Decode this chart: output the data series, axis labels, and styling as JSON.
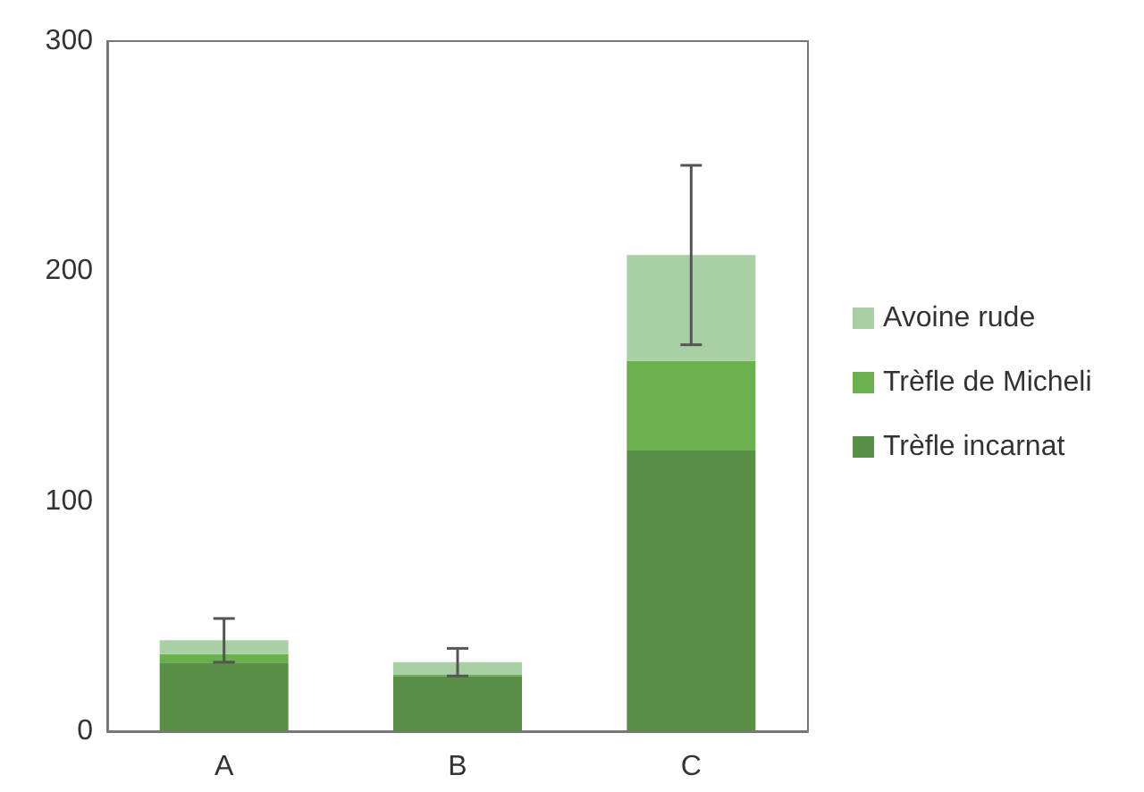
{
  "chart_data": {
    "type": "bar",
    "stacked": true,
    "categories": [
      "A",
      "B",
      "C"
    ],
    "series": [
      {
        "name": "Trèfle incarnat",
        "color": "#5a8f45",
        "values": [
          29.5,
          24,
          122
        ]
      },
      {
        "name": "Trèfle de Micheli",
        "color": "#6ab04c",
        "values": [
          4,
          0.5,
          39
        ]
      },
      {
        "name": "Avoine rude",
        "color": "#a9cfa5",
        "values": [
          6,
          5.5,
          46
        ],
        "errors": [
          9.5,
          6,
          39
        ]
      }
    ],
    "ylim": [
      0,
      300
    ],
    "yticks": [
      0,
      100,
      200,
      300
    ],
    "grid": false,
    "legend": "right"
  }
}
